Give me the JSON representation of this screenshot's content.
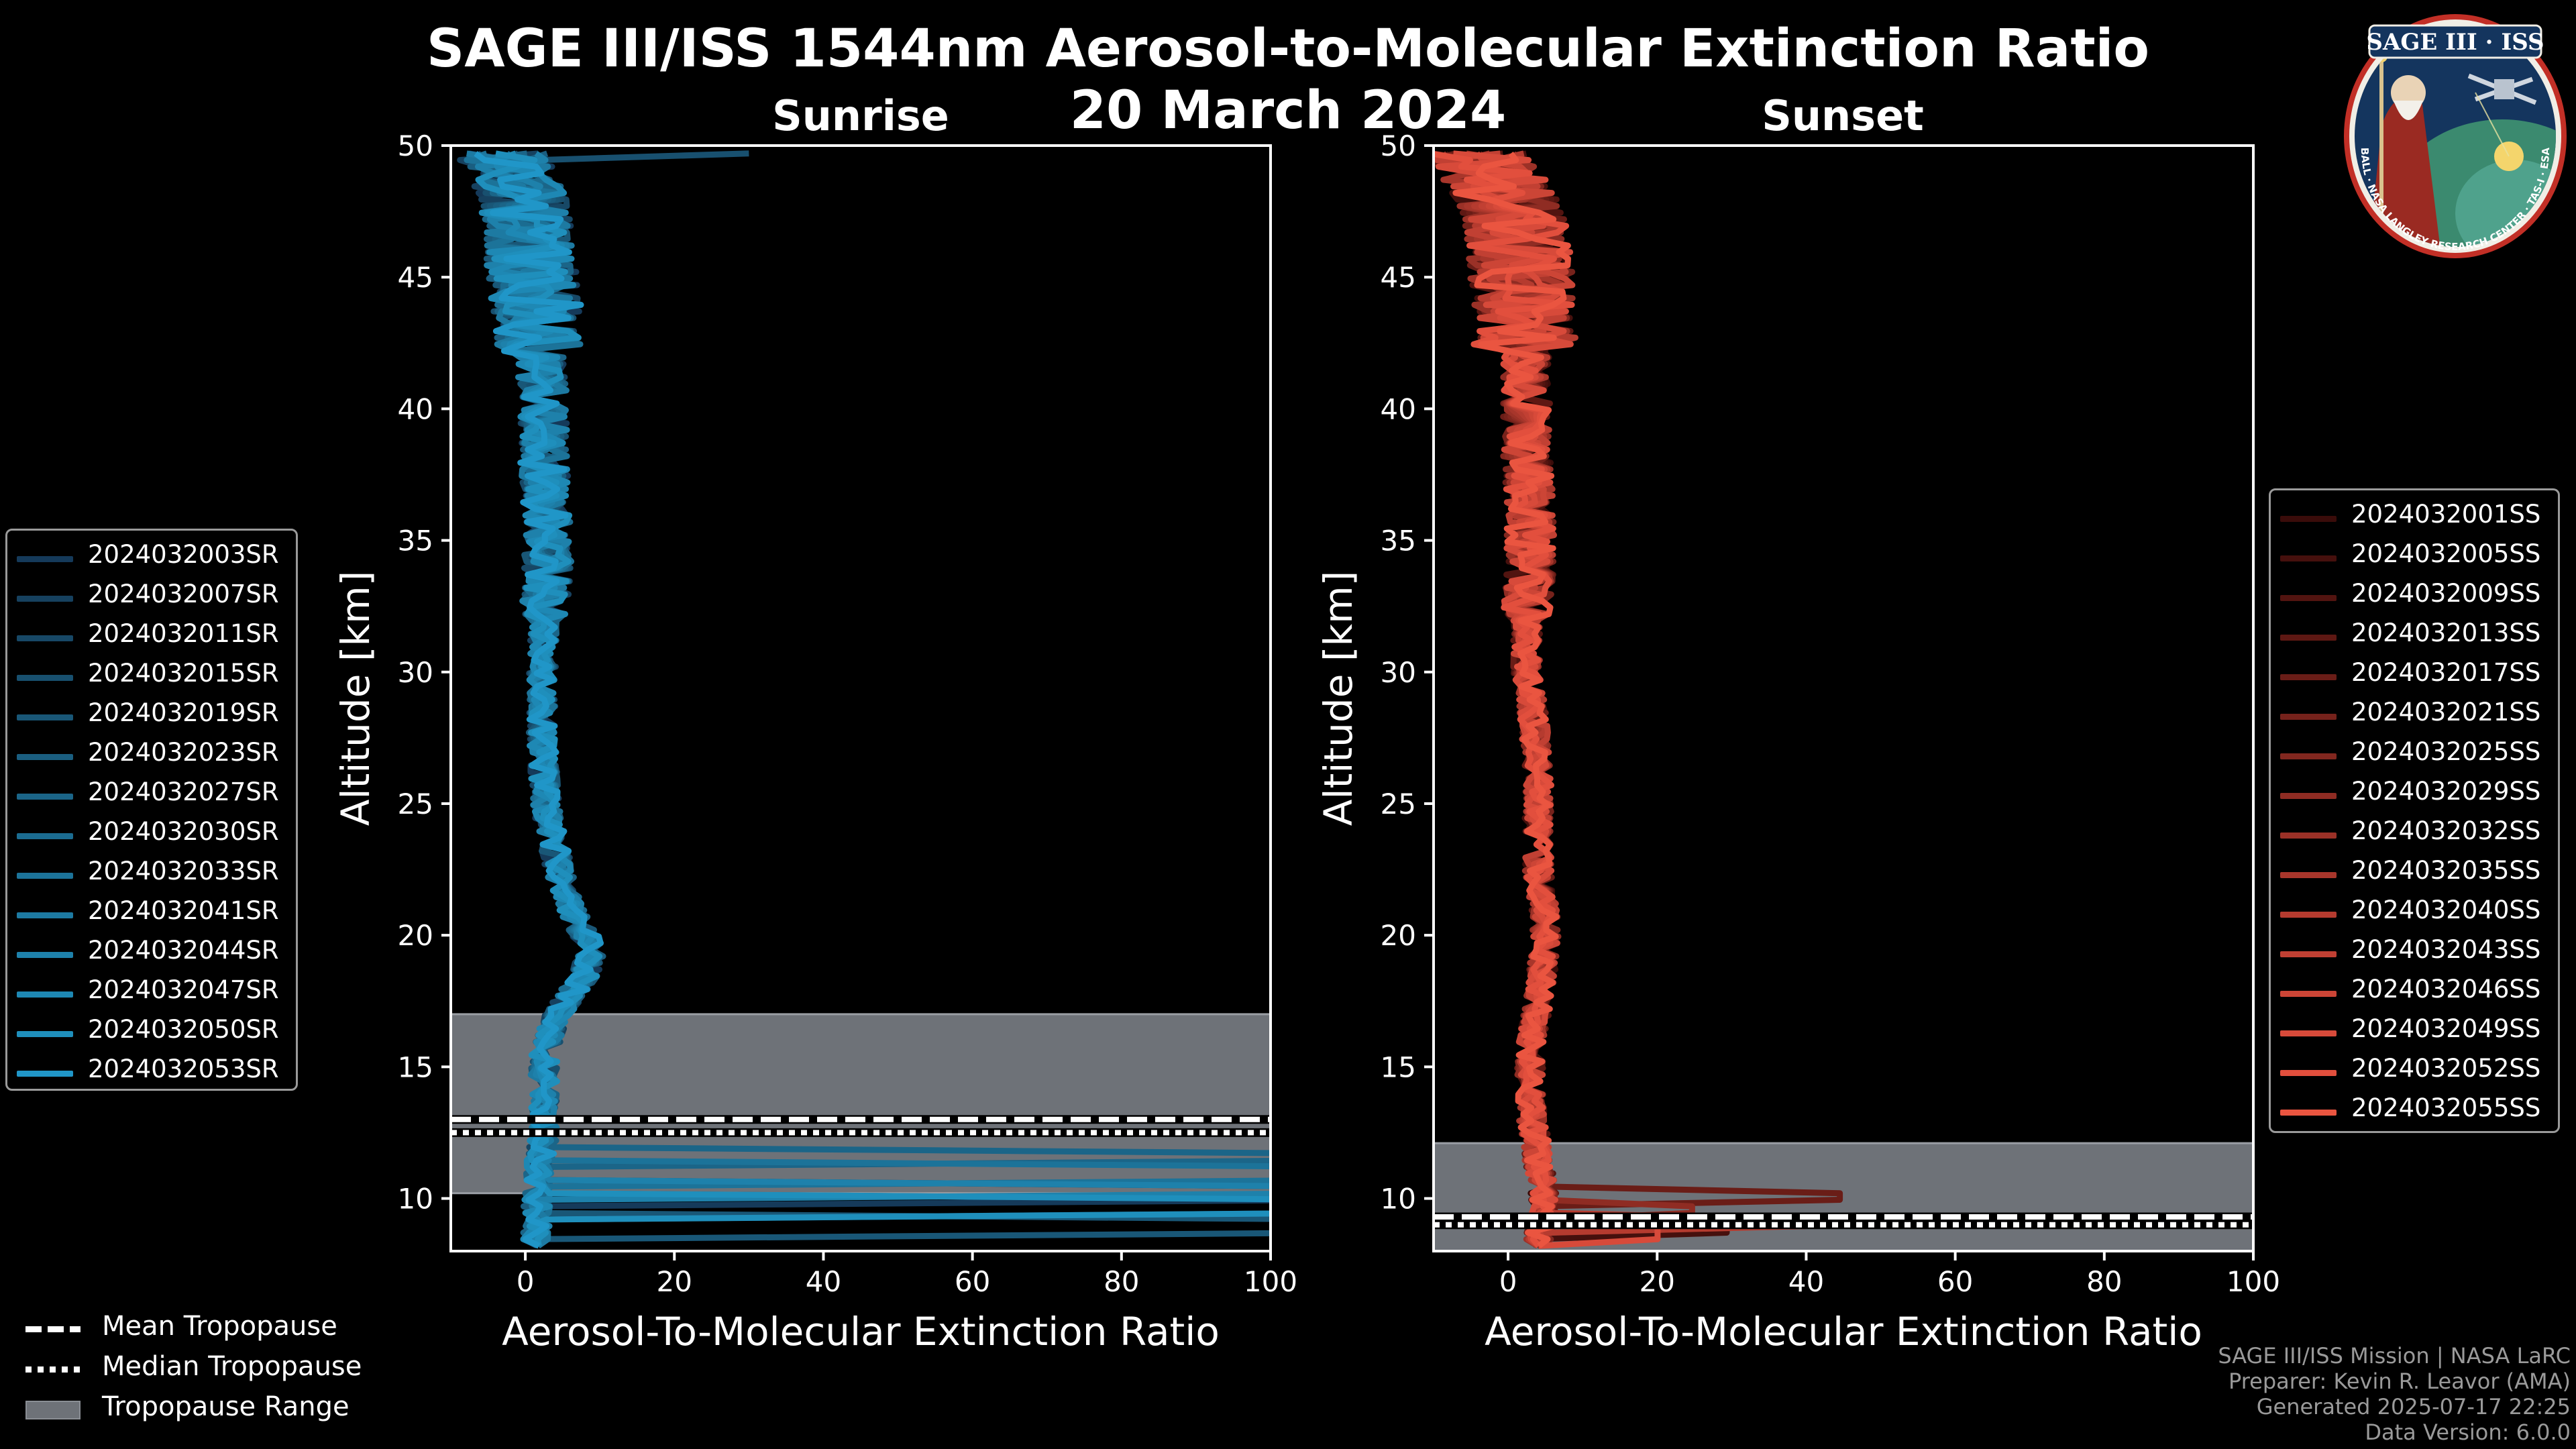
{
  "title": {
    "line1": "SAGE III/ISS 1544nm Aerosol-to-Molecular Extinction Ratio",
    "line2": "20 March 2024"
  },
  "colors": {
    "sunrise": "#1f8fd6",
    "sunset": "#e8543e",
    "tropopause_fill": "#6e7278",
    "background": "#000000"
  },
  "chart_data": [
    {
      "type": "line",
      "title": "Sunrise",
      "xlabel": "Aerosol-To-Molecular Extinction Ratio",
      "ylabel": "Altitude [km]",
      "xlim": [
        -10,
        100
      ],
      "ylim": [
        8,
        50
      ],
      "xticks": [
        "0",
        "20",
        "40",
        "60",
        "80",
        "100"
      ],
      "yticks": [
        "10",
        "15",
        "20",
        "25",
        "30",
        "35",
        "40",
        "45",
        "50"
      ],
      "tropopause": {
        "range": [
          10.2,
          17.0
        ],
        "mean": 13.0,
        "median": 12.5
      },
      "profile_shape": {
        "altitudes": [
          8.5,
          9.5,
          10.5,
          11.5,
          12.5,
          13.5,
          14.5,
          15.5,
          16.5,
          17.5,
          18.5,
          19.5,
          20.5,
          21.5,
          22.5,
          23.5,
          24.5,
          26,
          28,
          30,
          32,
          34,
          36,
          38,
          40,
          42,
          44,
          46,
          48,
          49.5
        ],
        "values": [
          1.5,
          1.5,
          1.8,
          2,
          2.5,
          2.5,
          2.5,
          2.5,
          3.5,
          5.5,
          8,
          9,
          7,
          5.5,
          4.5,
          3.8,
          3,
          2.5,
          2.2,
          2.3,
          2.5,
          3,
          3,
          2.5,
          2.5,
          2,
          1.5,
          0.5,
          0,
          -3
        ]
      },
      "series": [
        {
          "name": "2024032003SR",
          "color": "#153a5a"
        },
        {
          "name": "2024032007SR",
          "color": "#16415f"
        },
        {
          "name": "2024032011SR",
          "color": "#174866"
        },
        {
          "name": "2024032015SR",
          "color": "#18506f"
        },
        {
          "name": "2024032019SR",
          "color": "#195777"
        },
        {
          "name": "2024032023SR",
          "color": "#1a5e80"
        },
        {
          "name": "2024032027SR",
          "color": "#1b6588"
        },
        {
          "name": "2024032030SR",
          "color": "#1b6c91"
        },
        {
          "name": "2024032033SR",
          "color": "#1c7399"
        },
        {
          "name": "2024032041SR",
          "color": "#1d7aa2"
        },
        {
          "name": "2024032044SR",
          "color": "#1e81ab"
        },
        {
          "name": "2024032047SR",
          "color": "#1e88b4"
        },
        {
          "name": "2024032050SR",
          "color": "#1f8fbc"
        },
        {
          "name": "2024032053SR",
          "color": "#2096c8"
        }
      ]
    },
    {
      "type": "line",
      "title": "Sunset",
      "xlabel": "Aerosol-To-Molecular Extinction Ratio",
      "ylabel": "Altitude [km]",
      "xlim": [
        -10,
        100
      ],
      "ylim": [
        8,
        50
      ],
      "xticks": [
        "0",
        "20",
        "40",
        "60",
        "80",
        "100"
      ],
      "yticks": [
        "10",
        "15",
        "20",
        "25",
        "30",
        "35",
        "40",
        "45",
        "50"
      ],
      "tropopause": {
        "range": [
          8,
          12.1
        ],
        "mean": 9.3,
        "median": 9.0
      },
      "profile_shape": {
        "altitudes": [
          8.5,
          9.5,
          10.5,
          11.5,
          12.5,
          13.5,
          14.5,
          15.5,
          16.5,
          17.5,
          18.5,
          19.5,
          20.5,
          21.5,
          22.5,
          23.5,
          24.5,
          26,
          28,
          30,
          32,
          34,
          36,
          38,
          40,
          42,
          44,
          46,
          48,
          49.5
        ],
        "values": [
          4,
          5,
          4.5,
          4,
          3.5,
          3,
          3,
          3,
          3.5,
          4,
          4.5,
          5,
          5,
          4.5,
          4,
          4,
          4,
          4,
          3.5,
          2.5,
          2.5,
          3,
          3,
          2.5,
          2.5,
          2.5,
          2,
          1.5,
          0,
          -4
        ]
      },
      "series": [
        {
          "name": "2024032001SS",
          "color": "#3a0c0a"
        },
        {
          "name": "2024032005SS",
          "color": "#46100d"
        },
        {
          "name": "2024032009SS",
          "color": "#521410"
        },
        {
          "name": "2024032013SS",
          "color": "#5e1813"
        },
        {
          "name": "2024032017SS",
          "color": "#6a1d17"
        },
        {
          "name": "2024032021SS",
          "color": "#76221b"
        },
        {
          "name": "2024032025SS",
          "color": "#82271f"
        },
        {
          "name": "2024032029SS",
          "color": "#8f2c23"
        },
        {
          "name": "2024032032SS",
          "color": "#9b3127"
        },
        {
          "name": "2024032035SS",
          "color": "#a8362b"
        },
        {
          "name": "2024032040SS",
          "color": "#b53b2f"
        },
        {
          "name": "2024032043SS",
          "color": "#c14033"
        },
        {
          "name": "2024032046SS",
          "color": "#cc4536"
        },
        {
          "name": "2024032049SS",
          "color": "#d74a3a"
        },
        {
          "name": "2024032052SS",
          "color": "#e24f3d"
        },
        {
          "name": "2024032055SS",
          "color": "#ea5540"
        }
      ]
    }
  ],
  "tropopause_legend": [
    {
      "label": "Mean Tropopause",
      "style": "dashed"
    },
    {
      "label": "Median Tropopause",
      "style": "dotted"
    },
    {
      "label": "Tropopause Range",
      "style": "fill"
    }
  ],
  "badge": {
    "title": "SAGE III · ISS",
    "ring_text": "BALL · NASA LANGLEY RESEARCH CENTER · TAS-I · ESA"
  },
  "footer": {
    "line1": "SAGE III/ISS Mission | NASA LaRC",
    "line2": "Preparer: Kevin R. Leavor (AMA)",
    "line3": "Generated 2025-07-17 22:25",
    "line4": "Data Version: 6.0.0"
  }
}
